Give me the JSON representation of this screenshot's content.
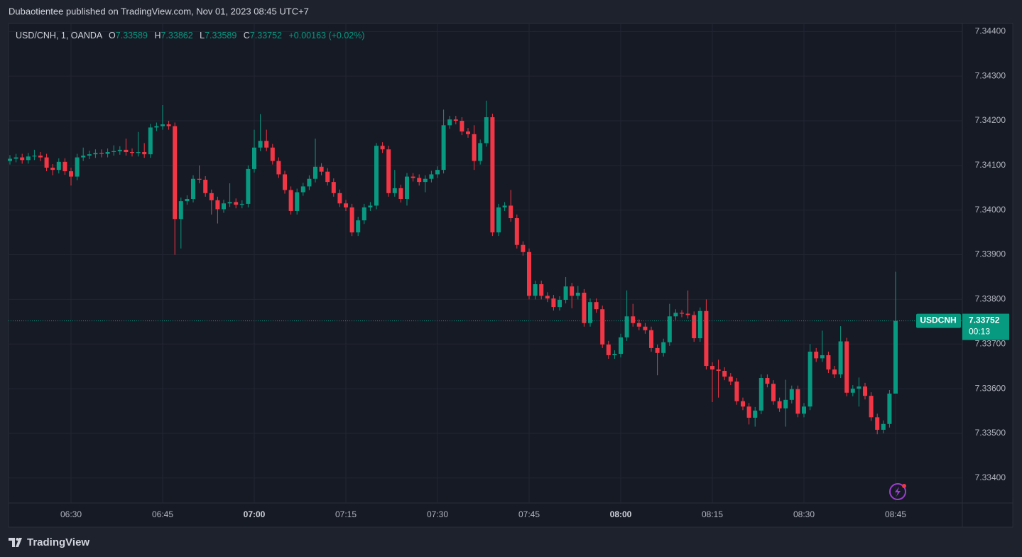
{
  "header": {
    "published": "Dubaotientee published on TradingView.com, Nov 01, 2023 08:45 UTC+7"
  },
  "footer": {
    "brand": "TradingView"
  },
  "chart_data": {
    "type": "candlestick",
    "title": "USD/CNH, 1, OANDA",
    "legend": {
      "o": "O",
      "h": "H",
      "l": "L",
      "c": "C",
      "change": "+0.00163 (+0.02%)"
    },
    "countdown": "00:13",
    "ylim": [
      7.33344,
      7.34418
    ],
    "yticks": [
      {
        "value": 7.344,
        "label": "7.34400"
      },
      {
        "value": 7.343,
        "label": "7.34300"
      },
      {
        "value": 7.342,
        "label": "7.34200"
      },
      {
        "value": 7.341,
        "label": "7.34100"
      },
      {
        "value": 7.34,
        "label": "7.34000"
      },
      {
        "value": 7.339,
        "label": "7.33900"
      },
      {
        "value": 7.338,
        "label": "7.33800"
      },
      {
        "value": 7.337,
        "label": "7.33700"
      },
      {
        "value": 7.336,
        "label": "7.33600"
      },
      {
        "value": 7.335,
        "label": "7.33500"
      },
      {
        "value": 7.334,
        "label": "7.33400"
      }
    ],
    "xticks": [
      "06:30",
      "06:45",
      "07:00",
      "07:15",
      "07:30",
      "07:45",
      "08:00",
      "08:15",
      "08:30",
      "08:45"
    ],
    "grid": true,
    "categories": [
      "06:20",
      "06:21",
      "06:22",
      "06:23",
      "06:24",
      "06:25",
      "06:26",
      "06:27",
      "06:28",
      "06:29",
      "06:30",
      "06:31",
      "06:32",
      "06:33",
      "06:34",
      "06:35",
      "06:36",
      "06:37",
      "06:38",
      "06:39",
      "06:40",
      "06:41",
      "06:42",
      "06:43",
      "06:44",
      "06:45",
      "06:46",
      "06:47",
      "06:48",
      "06:49",
      "06:50",
      "06:51",
      "06:52",
      "06:53",
      "06:54",
      "06:55",
      "06:56",
      "06:57",
      "06:58",
      "06:59",
      "07:00",
      "07:01",
      "07:02",
      "07:03",
      "07:04",
      "07:05",
      "07:06",
      "07:07",
      "07:08",
      "07:09",
      "07:10",
      "07:11",
      "07:12",
      "07:13",
      "07:14",
      "07:15",
      "07:16",
      "07:17",
      "07:18",
      "07:19",
      "07:20",
      "07:21",
      "07:22",
      "07:23",
      "07:24",
      "07:25",
      "07:26",
      "07:27",
      "07:28",
      "07:29",
      "07:30",
      "07:31",
      "07:32",
      "07:33",
      "07:34",
      "07:35",
      "07:36",
      "07:37",
      "07:38",
      "07:39",
      "07:40",
      "07:41",
      "07:42",
      "07:43",
      "07:44",
      "07:45",
      "07:46",
      "07:47",
      "07:48",
      "07:49",
      "07:50",
      "07:51",
      "07:52",
      "07:53",
      "07:54",
      "07:55",
      "07:56",
      "07:57",
      "07:58",
      "07:59",
      "08:00",
      "08:01",
      "08:02",
      "08:03",
      "08:04",
      "08:05",
      "08:06",
      "08:07",
      "08:08",
      "08:09",
      "08:10",
      "08:11",
      "08:12",
      "08:13",
      "08:14",
      "08:15",
      "08:16",
      "08:17",
      "08:18",
      "08:19",
      "08:20",
      "08:21",
      "08:22",
      "08:23",
      "08:24",
      "08:25",
      "08:26",
      "08:27",
      "08:28",
      "08:29",
      "08:30",
      "08:31",
      "08:32",
      "08:33",
      "08:34",
      "08:35",
      "08:36",
      "08:37",
      "08:38",
      "08:39",
      "08:40",
      "08:41",
      "08:42",
      "08:43",
      "08:44",
      "08:45"
    ],
    "series": [
      {
        "name": "USDCNH",
        "up_color": "#089981",
        "down_color": "#f23645",
        "open": [
          7.3411,
          7.34115,
          7.34118,
          7.34112,
          7.3412,
          7.34122,
          7.34118,
          7.34095,
          7.3409,
          7.34108,
          7.34087,
          7.34075,
          7.34118,
          7.34122,
          7.34125,
          7.34128,
          7.34126,
          7.3413,
          7.34132,
          7.34135,
          7.3413,
          7.34128,
          7.3413,
          7.34125,
          7.34185,
          7.34188,
          7.34192,
          7.34188,
          7.3398,
          7.3402,
          7.34025,
          7.3407,
          7.34068,
          7.34038,
          7.34022,
          7.34002,
          7.34015,
          7.34018,
          7.34012,
          7.34014,
          7.34092,
          7.3414,
          7.34155,
          7.3414,
          7.3411,
          7.3408,
          7.34045,
          7.33998,
          7.3404,
          7.34053,
          7.3407,
          7.34097,
          7.34086,
          7.34063,
          7.34038,
          7.34015,
          7.34006,
          7.3395,
          7.33977,
          7.34006,
          7.3401,
          7.34144,
          7.34136,
          7.34038,
          7.34049,
          7.34025,
          7.34075,
          7.34072,
          7.34063,
          7.3407,
          7.3408,
          7.3409,
          7.3419,
          7.34203,
          7.342,
          7.34176,
          7.3417,
          7.3411,
          7.3415,
          7.34208,
          7.3395,
          7.34006,
          7.3401,
          7.33982,
          7.33922,
          7.33906,
          7.33808,
          7.33834,
          7.33808,
          7.33802,
          7.33783,
          7.33799,
          7.33829,
          7.33808,
          7.33815,
          7.33747,
          7.33794,
          7.33778,
          7.33699,
          7.33675,
          7.33678,
          7.33715,
          7.33762,
          7.33747,
          7.33739,
          7.33731,
          7.33691,
          7.3368,
          7.33704,
          7.33762,
          7.3377,
          7.33768,
          7.33765,
          7.33713,
          7.33774,
          7.33651,
          7.33643,
          7.3364,
          7.33627,
          7.33616,
          7.33572,
          7.3356,
          7.33535,
          7.33551,
          7.33624,
          7.33611,
          7.33572,
          7.33556,
          7.33575,
          7.33599,
          7.33544,
          7.3356,
          7.33683,
          7.33668,
          7.33675,
          7.33643,
          7.33632,
          7.33706,
          7.33591,
          7.336,
          7.33605,
          7.33584,
          7.33536,
          7.33508,
          7.33521,
          7.33589
        ],
        "high": [
          7.34123,
          7.34126,
          7.34126,
          7.34128,
          7.34135,
          7.3413,
          7.34126,
          7.34103,
          7.34116,
          7.34116,
          7.34095,
          7.34126,
          7.3414,
          7.34133,
          7.34136,
          7.34136,
          7.34138,
          7.34145,
          7.34143,
          7.3416,
          7.34138,
          7.34175,
          7.3415,
          7.34193,
          7.34196,
          7.34235,
          7.342,
          7.34196,
          7.34028,
          7.34033,
          7.34078,
          7.341,
          7.34076,
          7.34046,
          7.3403,
          7.34023,
          7.3406,
          7.34026,
          7.34022,
          7.341,
          7.3418,
          7.34215,
          7.3418,
          7.34148,
          7.34118,
          7.34088,
          7.34053,
          7.34048,
          7.34061,
          7.34078,
          7.3416,
          7.34105,
          7.34094,
          7.34071,
          7.34046,
          7.34023,
          7.34014,
          7.33985,
          7.34014,
          7.34018,
          7.3415,
          7.34152,
          7.34144,
          7.3409,
          7.34057,
          7.34083,
          7.34083,
          7.3408,
          7.34078,
          7.34088,
          7.34098,
          7.34225,
          7.34211,
          7.34211,
          7.34208,
          7.34184,
          7.3419,
          7.34158,
          7.34245,
          7.34216,
          7.34014,
          7.34018,
          7.34045,
          7.3399,
          7.3393,
          7.33914,
          7.33842,
          7.33842,
          7.33816,
          7.3381,
          7.33807,
          7.3385,
          7.33837,
          7.3383,
          7.33823,
          7.33802,
          7.33802,
          7.33786,
          7.33707,
          7.33686,
          7.33723,
          7.3382,
          7.3379,
          7.33755,
          7.33747,
          7.33739,
          7.33699,
          7.33712,
          7.3379,
          7.33778,
          7.33776,
          7.3382,
          7.33773,
          7.33782,
          7.338,
          7.33659,
          7.33665,
          7.33648,
          7.33635,
          7.33624,
          7.3358,
          7.33568,
          7.33559,
          7.33632,
          7.33632,
          7.33619,
          7.3358,
          7.3362,
          7.33607,
          7.33607,
          7.33568,
          7.337,
          7.33691,
          7.3373,
          7.33683,
          7.33651,
          7.3374,
          7.33714,
          7.33608,
          7.33625,
          7.33613,
          7.33592,
          7.33544,
          7.33529,
          7.33597,
          7.33862
        ],
        "low": [
          7.34102,
          7.34107,
          7.34104,
          7.34104,
          7.34112,
          7.3411,
          7.34087,
          7.34078,
          7.34082,
          7.34079,
          7.34055,
          7.34067,
          7.3411,
          7.34114,
          7.34117,
          7.34118,
          7.34118,
          7.34122,
          7.34124,
          7.34122,
          7.3412,
          7.3412,
          7.34117,
          7.34117,
          7.34177,
          7.3418,
          7.3418,
          7.339,
          7.33914,
          7.34012,
          7.34017,
          7.3406,
          7.3403,
          7.3399,
          7.3397,
          7.33994,
          7.34007,
          7.34004,
          7.34004,
          7.34006,
          7.34084,
          7.34132,
          7.34132,
          7.34102,
          7.34072,
          7.34037,
          7.3399,
          7.3399,
          7.34032,
          7.34045,
          7.34062,
          7.34078,
          7.34055,
          7.3403,
          7.34007,
          7.33998,
          7.33942,
          7.33942,
          7.33969,
          7.33998,
          7.34002,
          7.34128,
          7.3403,
          7.3403,
          7.34017,
          7.3401,
          7.34064,
          7.34055,
          7.3404,
          7.34062,
          7.34072,
          7.34082,
          7.34182,
          7.34192,
          7.34168,
          7.34162,
          7.3409,
          7.34102,
          7.34142,
          7.33942,
          7.33942,
          7.33998,
          7.33974,
          7.33914,
          7.33898,
          7.338,
          7.338,
          7.338,
          7.33794,
          7.33775,
          7.33775,
          7.33791,
          7.3378,
          7.338,
          7.33739,
          7.33739,
          7.3377,
          7.33691,
          7.33667,
          7.33667,
          7.3367,
          7.33707,
          7.33739,
          7.33731,
          7.33723,
          7.33683,
          7.3363,
          7.33672,
          7.33696,
          7.33754,
          7.3376,
          7.33757,
          7.33705,
          7.33705,
          7.33643,
          7.3357,
          7.3358,
          7.33619,
          7.33608,
          7.33564,
          7.33552,
          7.3352,
          7.33515,
          7.33543,
          7.33603,
          7.33564,
          7.33548,
          7.33515,
          7.33567,
          7.33536,
          7.33536,
          7.33552,
          7.3366,
          7.3366,
          7.33635,
          7.33624,
          7.33624,
          7.33583,
          7.33583,
          7.3356,
          7.33576,
          7.33528,
          7.33498,
          7.335,
          7.33513,
          7.33589
        ],
        "close": [
          7.34115,
          7.34118,
          7.34112,
          7.3412,
          7.34122,
          7.34118,
          7.34095,
          7.3409,
          7.34108,
          7.34087,
          7.34075,
          7.34118,
          7.34122,
          7.34125,
          7.34128,
          7.34126,
          7.3413,
          7.34132,
          7.34135,
          7.3413,
          7.34128,
          7.3413,
          7.34125,
          7.34185,
          7.34188,
          7.34192,
          7.34188,
          7.3398,
          7.3402,
          7.34025,
          7.3407,
          7.34068,
          7.34038,
          7.34022,
          7.34002,
          7.34015,
          7.34018,
          7.34012,
          7.34014,
          7.34092,
          7.3414,
          7.34155,
          7.3414,
          7.3411,
          7.3408,
          7.34045,
          7.33998,
          7.3404,
          7.34053,
          7.3407,
          7.34097,
          7.34086,
          7.34063,
          7.34038,
          7.34015,
          7.34006,
          7.3395,
          7.33977,
          7.34006,
          7.3401,
          7.34144,
          7.34136,
          7.34038,
          7.34049,
          7.34025,
          7.34075,
          7.34072,
          7.34063,
          7.3407,
          7.3408,
          7.3409,
          7.3419,
          7.34203,
          7.342,
          7.34176,
          7.3417,
          7.3411,
          7.3415,
          7.34208,
          7.3395,
          7.34006,
          7.3401,
          7.33982,
          7.33922,
          7.33906,
          7.33808,
          7.33834,
          7.33808,
          7.33802,
          7.33783,
          7.33799,
          7.33829,
          7.33808,
          7.33815,
          7.33747,
          7.33794,
          7.33778,
          7.33699,
          7.33675,
          7.33678,
          7.33715,
          7.33762,
          7.33747,
          7.33739,
          7.33731,
          7.33691,
          7.3368,
          7.33704,
          7.33762,
          7.3377,
          7.33768,
          7.33765,
          7.33713,
          7.33774,
          7.33651,
          7.33643,
          7.3364,
          7.33627,
          7.33616,
          7.33572,
          7.3356,
          7.33535,
          7.33551,
          7.33624,
          7.33611,
          7.33572,
          7.33556,
          7.33575,
          7.33599,
          7.33544,
          7.3356,
          7.33683,
          7.33668,
          7.33675,
          7.33643,
          7.33632,
          7.33706,
          7.33591,
          7.336,
          7.33605,
          7.33584,
          7.33536,
          7.33508,
          7.33521,
          7.33589,
          7.33752
        ]
      }
    ]
  }
}
